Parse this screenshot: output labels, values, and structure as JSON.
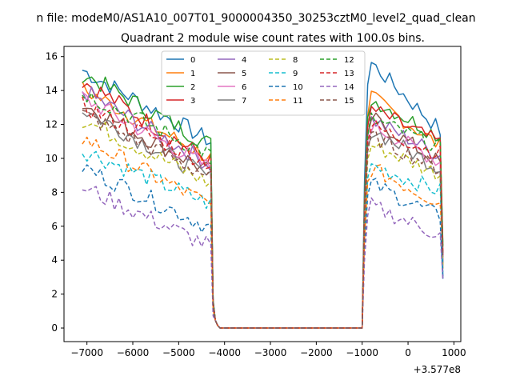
{
  "chart_data": {
    "type": "line",
    "suptitle": "n file: modeM0/AS1A10_007T01_9000004350_30253cztM0_level2_quad_clean",
    "title": "Quadrant 2 module wise count rates with 100.0s bins.",
    "xlabel": "",
    "ylabel": "",
    "x_offset_label": "+3.577e8",
    "xlim": [
      -7500,
      1150
    ],
    "ylim": [
      -0.8,
      16.6
    ],
    "xticks": [
      -7000,
      -6000,
      -5000,
      -4000,
      -3000,
      -2000,
      -1000,
      0,
      1000
    ],
    "yticks": [
      0,
      2,
      4,
      6,
      8,
      10,
      12,
      14,
      16
    ],
    "grid": false,
    "legend": {
      "placement": "upper-center",
      "columns": 4
    },
    "segments": [
      {
        "x_start": -7100,
        "x_end": -4300,
        "step": 100
      },
      {
        "x_start": -4300,
        "x_end": -1000,
        "step": 100
      },
      {
        "x_start": -1000,
        "x_end": 760,
        "step": 100
      }
    ],
    "series": [
      {
        "name": "0",
        "color": "#1f77b4",
        "dashed": false,
        "first_level": [
          15.2,
          11.0
        ],
        "second_level": [
          15.6,
          11.5
        ],
        "end_value": 2.9
      },
      {
        "name": "1",
        "color": "#ff7f0e",
        "dashed": false,
        "first_level": [
          14.1,
          10.0
        ],
        "second_level": [
          13.6,
          10.6
        ],
        "end_value": 3.5
      },
      {
        "name": "2",
        "color": "#2ca02c",
        "dashed": false,
        "first_level": [
          15.0,
          10.8
        ],
        "second_level": [
          13.5,
          11.2
        ],
        "end_value": 4.9
      },
      {
        "name": "3",
        "color": "#d62728",
        "dashed": false,
        "first_level": [
          14.6,
          9.8
        ],
        "second_level": [
          12.9,
          10.8
        ],
        "end_value": 4.4
      },
      {
        "name": "4",
        "color": "#9467bd",
        "dashed": false,
        "first_level": [
          14.0,
          9.6
        ],
        "second_level": [
          12.3,
          10.1
        ],
        "end_value": 3.9
      },
      {
        "name": "5",
        "color": "#8c564b",
        "dashed": false,
        "first_level": [
          13.2,
          9.2
        ],
        "second_level": [
          12.4,
          9.6
        ],
        "end_value": 4.2
      },
      {
        "name": "6",
        "color": "#e377c2",
        "dashed": false,
        "first_level": [
          13.6,
          9.4
        ],
        "second_level": [
          12.0,
          9.7
        ],
        "end_value": 4.0
      },
      {
        "name": "7",
        "color": "#7f7f7f",
        "dashed": false,
        "first_level": [
          12.9,
          8.8
        ],
        "second_level": [
          11.7,
          9.3
        ],
        "end_value": 3.8
      },
      {
        "name": "8",
        "color": "#bcbd22",
        "dashed": true,
        "first_level": [
          12.3,
          8.5
        ],
        "second_level": [
          10.8,
          9.0
        ],
        "end_value": 3.7
      },
      {
        "name": "9",
        "color": "#17becf",
        "dashed": true,
        "first_level": [
          10.5,
          7.3
        ],
        "second_level": [
          9.6,
          8.0
        ],
        "end_value": 3.3
      },
      {
        "name": "10",
        "color": "#1f77b4",
        "dashed": true,
        "first_level": [
          9.5,
          5.9
        ],
        "second_level": [
          8.5,
          6.5
        ],
        "end_value": 3.0
      },
      {
        "name": "11",
        "color": "#ff7f0e",
        "dashed": true,
        "first_level": [
          11.2,
          7.2
        ],
        "second_level": [
          9.4,
          7.3
        ],
        "end_value": 4.6
      },
      {
        "name": "12",
        "color": "#2ca02c",
        "dashed": true,
        "first_level": [
          13.9,
          10.2
        ],
        "second_level": [
          12.3,
          10.6
        ],
        "end_value": 4.8
      },
      {
        "name": "13",
        "color": "#d62728",
        "dashed": true,
        "first_level": [
          13.1,
          9.7
        ],
        "second_level": [
          11.9,
          10.2
        ],
        "end_value": 4.3
      },
      {
        "name": "14",
        "color": "#9467bd",
        "dashed": true,
        "first_level": [
          8.3,
          4.8
        ],
        "second_level": [
          7.2,
          5.4
        ],
        "end_value": 2.9
      },
      {
        "name": "15",
        "color": "#8c564b",
        "dashed": true,
        "first_level": [
          12.6,
          8.9
        ],
        "second_level": [
          11.3,
          9.3
        ],
        "end_value": 4.3
      }
    ]
  }
}
